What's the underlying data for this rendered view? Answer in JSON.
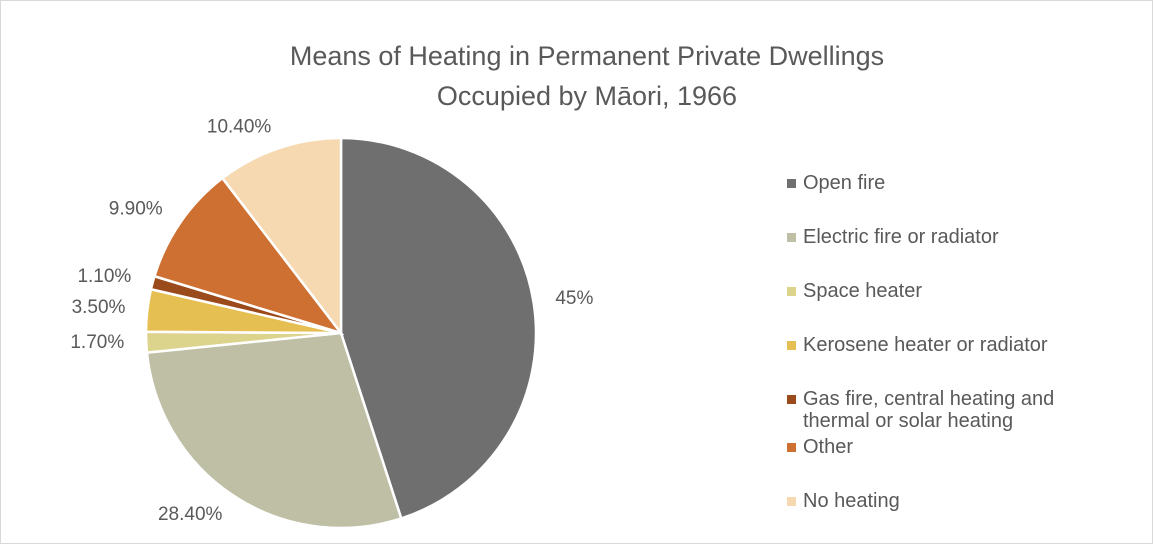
{
  "chart_data": {
    "type": "pie",
    "title": [
      "Means of Heating in Permanent Private Dwellings",
      "Occupied by Māori, 1966"
    ],
    "categories": [
      "Open fire",
      "Electric fire or radiator",
      "Space heater",
      "Kerosene heater or radiator",
      "Gas fire, central heating and thermal or solar heating",
      "Other",
      "No heating"
    ],
    "values": [
      45,
      28.4,
      1.7,
      3.5,
      1.1,
      9.9,
      10.4
    ],
    "value_labels": [
      "45%",
      "28.40%",
      "1.70%",
      "3.50%",
      "1.10%",
      "9.90%",
      "10.40%"
    ],
    "colors": [
      "#6f6f6f",
      "#bfbfa6",
      "#dcd38c",
      "#e6bf52",
      "#9b4a1b",
      "#cf7033",
      "#f6d9b1"
    ],
    "legend": "right"
  }
}
